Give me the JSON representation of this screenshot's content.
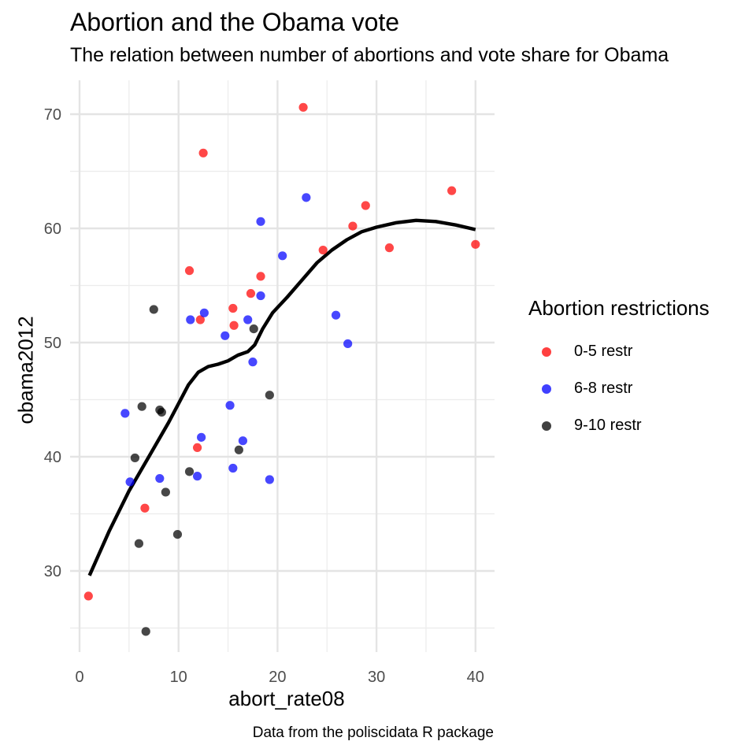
{
  "chart_data": {
    "type": "scatter",
    "title": "Abortion and the Obama vote",
    "subtitle": "The relation between number of abortions and vote share for Obama",
    "caption": "Data from the poliscidata R package",
    "xlabel": "abort_rate08",
    "ylabel": "obama2012",
    "xlim": [
      0,
      40
    ],
    "ylim": [
      25,
      70
    ],
    "x_ticks": [
      0,
      10,
      20,
      30,
      40
    ],
    "y_ticks": [
      30,
      40,
      50,
      60,
      70
    ],
    "grid": true,
    "legend": {
      "title": "Abortion restrictions",
      "position": "right"
    },
    "colors": {
      "0-5 restr": "#ff0000",
      "6-8 restr": "#0000ff",
      "9-10 restr": "#000000"
    },
    "series": [
      {
        "name": "0-5 restr",
        "points": [
          [
            22.6,
            70.6
          ],
          [
            12.5,
            66.6
          ],
          [
            37.6,
            63.3
          ],
          [
            28.9,
            62.0
          ],
          [
            27.6,
            60.2
          ],
          [
            24.6,
            58.1
          ],
          [
            31.3,
            58.3
          ],
          [
            40.0,
            58.6
          ],
          [
            11.1,
            56.3
          ],
          [
            18.3,
            55.8
          ],
          [
            17.3,
            54.3
          ],
          [
            15.5,
            53.0
          ],
          [
            12.2,
            52.0
          ],
          [
            15.6,
            51.5
          ],
          [
            11.9,
            40.8
          ],
          [
            6.6,
            35.5
          ],
          [
            0.9,
            27.8
          ]
        ]
      },
      {
        "name": "6-8 restr",
        "points": [
          [
            22.9,
            62.7
          ],
          [
            18.3,
            60.6
          ],
          [
            20.5,
            57.6
          ],
          [
            18.3,
            54.1
          ],
          [
            12.6,
            52.6
          ],
          [
            11.2,
            52.0
          ],
          [
            17.0,
            52.0
          ],
          [
            25.9,
            52.4
          ],
          [
            14.7,
            50.6
          ],
          [
            27.1,
            49.9
          ],
          [
            17.5,
            48.3
          ],
          [
            15.2,
            44.5
          ],
          [
            4.6,
            43.8
          ],
          [
            12.3,
            41.7
          ],
          [
            16.5,
            41.4
          ],
          [
            5.1,
            37.8
          ],
          [
            8.1,
            38.1
          ],
          [
            11.9,
            38.3
          ],
          [
            15.5,
            39.0
          ],
          [
            19.2,
            38.0
          ]
        ]
      },
      {
        "name": "9-10 restr",
        "points": [
          [
            7.5,
            52.9
          ],
          [
            17.6,
            51.2
          ],
          [
            19.2,
            45.4
          ],
          [
            6.3,
            44.4
          ],
          [
            8.1,
            44.1
          ],
          [
            8.3,
            43.9
          ],
          [
            5.6,
            39.9
          ],
          [
            16.1,
            40.6
          ],
          [
            11.1,
            38.7
          ],
          [
            8.7,
            36.9
          ],
          [
            9.9,
            33.2
          ],
          [
            6.0,
            32.4
          ],
          [
            6.7,
            24.7
          ]
        ]
      }
    ],
    "trend_line": {
      "type": "smooth",
      "points": [
        [
          1,
          29.6
        ],
        [
          3,
          33.5
        ],
        [
          5,
          37.0
        ],
        [
          7,
          40.0
        ],
        [
          9,
          43.0
        ],
        [
          11,
          46.3
        ],
        [
          12,
          47.4
        ],
        [
          13,
          47.9
        ],
        [
          14,
          48.1
        ],
        [
          15,
          48.4
        ],
        [
          16,
          48.9
        ],
        [
          17,
          49.2
        ],
        [
          17.7,
          49.8
        ],
        [
          18.5,
          51.2
        ],
        [
          19.5,
          52.6
        ],
        [
          21,
          54.0
        ],
        [
          22.5,
          55.5
        ],
        [
          24,
          57.0
        ],
        [
          25.5,
          58.1
        ],
        [
          27,
          59.0
        ],
        [
          28.5,
          59.7
        ],
        [
          30,
          60.1
        ],
        [
          32,
          60.5
        ],
        [
          34,
          60.7
        ],
        [
          36,
          60.6
        ],
        [
          38,
          60.3
        ],
        [
          40,
          59.9
        ]
      ]
    }
  }
}
